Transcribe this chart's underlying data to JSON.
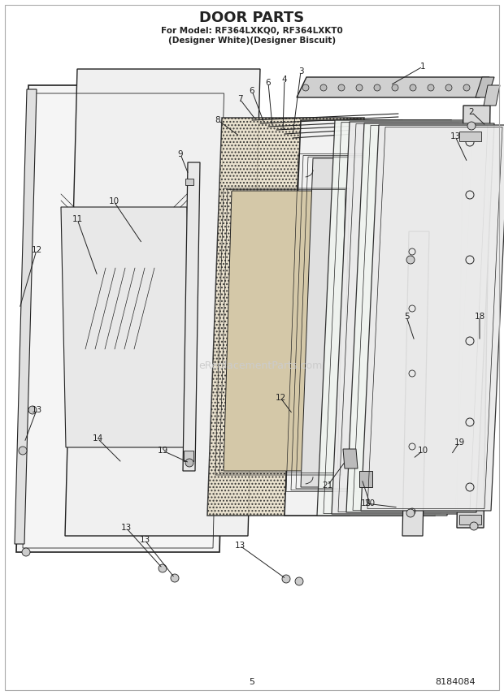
{
  "title": "DOOR PARTS",
  "subtitle_line1": "For Model: RF364LXKQ0, RF364LXKT0",
  "subtitle_line2": "(Designer White)(Designer Biscuit)",
  "page_number": "5",
  "doc_number": "8184084",
  "background_color": "#ffffff",
  "line_color": "#222222",
  "label_color": "#222222",
  "watermark_text": "eReplacementParts.com",
  "watermark_color": "#cccccc",
  "fig_width": 6.2,
  "fig_height": 8.56,
  "dpi": 100
}
